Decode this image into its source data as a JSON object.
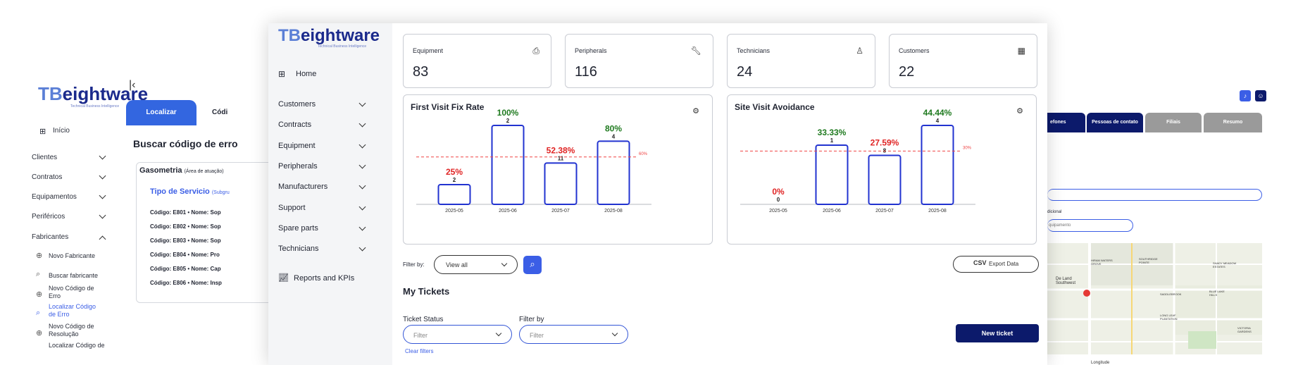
{
  "bg_left": {
    "logo_tb": "TB",
    "logo_rest": "eightware",
    "logo_sub": "Technical Business Intelligence",
    "home": "Início",
    "nav": [
      "Clientes",
      "Contratos",
      "Equipamentos",
      "Periféricos",
      "Fabricantes"
    ],
    "sub_items": [
      "Novo Fabricante",
      "Buscar fabricante",
      "Novo Código de Erro",
      "Localizar Código de Erro",
      "Novo Código de Resolução",
      "Localizar Código de"
    ],
    "tab_active": "Localizar",
    "tab_other": "Códi",
    "section_title": "Buscar código de erro",
    "group_title": "Gasometria",
    "group_sub": "(Área de atuação)",
    "service_title": "Tipo de Servicio",
    "service_sub": "(Subgru",
    "codes": [
      {
        "code": "Código: E801",
        "name": "• Nome: Sop"
      },
      {
        "code": "Código: E802",
        "name": "• Nome: Sop"
      },
      {
        "code": "Código: E803",
        "name": "• Nome: Sop"
      },
      {
        "code": "Código: E804",
        "name": "• Nome: Pro"
      },
      {
        "code": "Código: E805",
        "name": "• Nome: Cap"
      },
      {
        "code": "Código: E806",
        "name": "• Nome: Insp"
      }
    ]
  },
  "bg_right": {
    "tabs": [
      "efones",
      "Pessoas de contato",
      "Filiais",
      "Resumo"
    ],
    "field_label": "dicional",
    "field_value": "quipamento",
    "map_labels": [
      "De Land Southwest",
      "HIRAM WATERS GROVE",
      "SOUTHRIDGE POINTE",
      "SHADY MEADOW ESTATES",
      "SADDLEBROOK",
      "BLUE LAKE HILLS",
      "LONG LEAF PLANTATION",
      "VICTORIA GARDENS",
      "Longitude"
    ]
  },
  "sidebar": {
    "logo_tb": "TB",
    "logo_rest": "eightware",
    "logo_sub": "Technical Business Intelligence",
    "home": "Home",
    "items": [
      "Customers",
      "Contracts",
      "Equipment",
      "Peripherals",
      "Manufacturers",
      "Support",
      "Spare parts",
      "Technicians"
    ],
    "reports": "Reports and KPIs"
  },
  "cards": [
    {
      "label": "Equipment",
      "value": "83",
      "icon": "equipment-icon"
    },
    {
      "label": "Peripherals",
      "value": "116",
      "icon": "wrench-icon"
    },
    {
      "label": "Technicians",
      "value": "24",
      "icon": "technician-icon"
    },
    {
      "label": "Customers",
      "value": "22",
      "icon": "building-icon"
    }
  ],
  "chart_data": [
    {
      "type": "bar",
      "title": "First Visit Fix Rate",
      "categories": [
        "2025-05",
        "2025-06",
        "2025-07",
        "2025-08"
      ],
      "values": [
        25,
        100,
        52.38,
        80
      ],
      "percent_labels": [
        "25%",
        "100%",
        "52.38%",
        "80%"
      ],
      "counts": [
        "2",
        "2",
        "11",
        "4"
      ],
      "label_colors": [
        "#e02424",
        "#1f7a1f",
        "#e02424",
        "#1f7a1f"
      ],
      "target": 60,
      "target_label": "60%",
      "ylim": [
        0,
        100
      ]
    },
    {
      "type": "bar",
      "title": "Site Visit Avoidance",
      "categories": [
        "2025-05",
        "2025-06",
        "2025-07",
        "2025-08"
      ],
      "values": [
        0,
        33.33,
        27.59,
        44.44
      ],
      "percent_labels": [
        "0%",
        "33.33%",
        "27.59%",
        "44.44%"
      ],
      "counts": [
        "0",
        "1",
        "8",
        "4"
      ],
      "label_colors": [
        "#e02424",
        "#1f7a1f",
        "#e02424",
        "#1f7a1f"
      ],
      "target": 30,
      "target_label": "30%",
      "ylim": [
        0,
        44.44
      ]
    }
  ],
  "filter": {
    "label": "Filter by:",
    "value": "View all",
    "export": "Export Data",
    "export_badge": "CSV"
  },
  "tickets": {
    "title": "My Tickets",
    "status_label": "Ticket Status",
    "status_placeholder": "Filter",
    "filter_label": "Filter by",
    "filter_placeholder": "Filter",
    "clear": "Clear filters",
    "new_ticket": "New ticket"
  },
  "colors": {
    "bar_stroke": "#2233d0",
    "target_line": "#ef4444",
    "accent": "#3b5ee6",
    "dark": "#0c1a6b"
  }
}
